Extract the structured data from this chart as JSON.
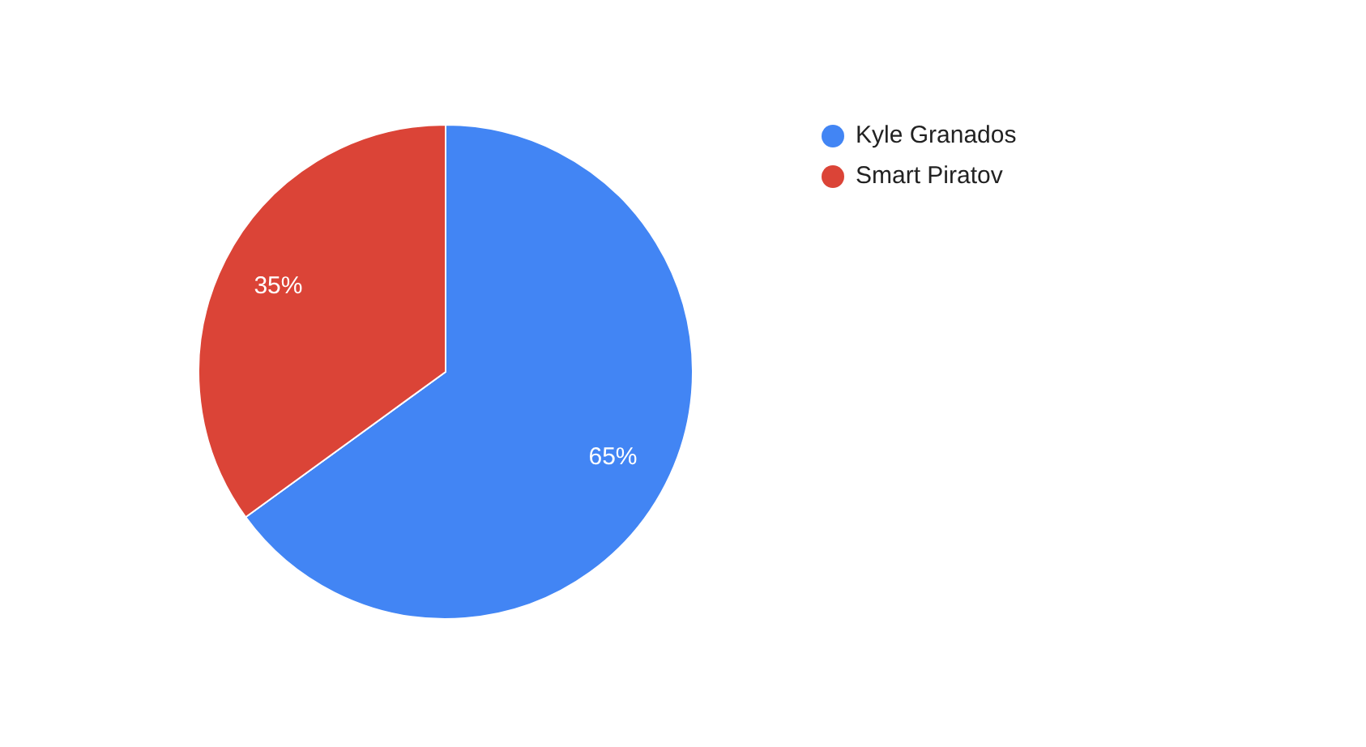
{
  "chart_data": {
    "type": "pie",
    "categories": [
      "Kyle Granados",
      "Smart Piratov"
    ],
    "values": [
      65,
      35
    ],
    "colors": [
      "#4285f4",
      "#db4437"
    ],
    "value_labels": [
      "65%",
      "35%"
    ],
    "legend": "top right"
  }
}
